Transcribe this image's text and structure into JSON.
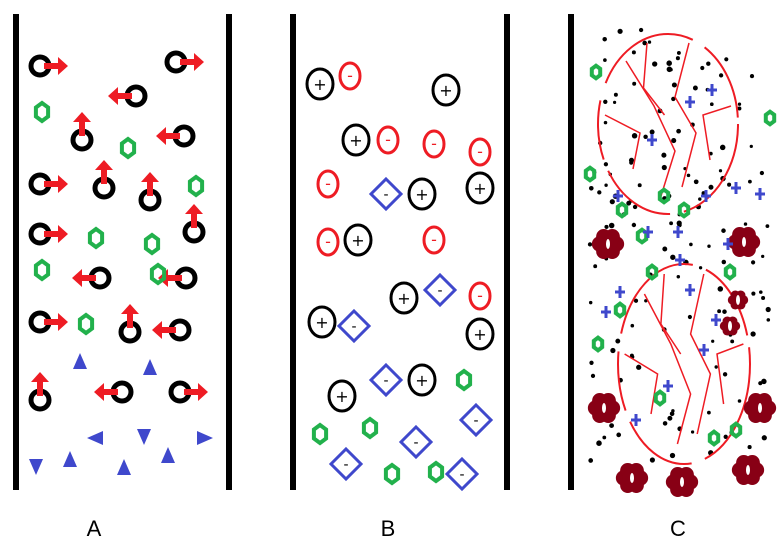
{
  "panels": [
    {
      "label": "A"
    },
    {
      "label": "B"
    },
    {
      "label": "C"
    }
  ],
  "particle_glyphs": {
    "positive": "+",
    "negative": "-"
  },
  "colors": {
    "wall": "#000000",
    "arrow": "#ee1c24",
    "ring": "#000000",
    "hex": "#22b14c",
    "triangle": "#3f48cc",
    "diamond": "#3f48cc",
    "negative_ion": "#ee1c24",
    "flower": "#880015",
    "crack": "#ee1c24"
  }
}
